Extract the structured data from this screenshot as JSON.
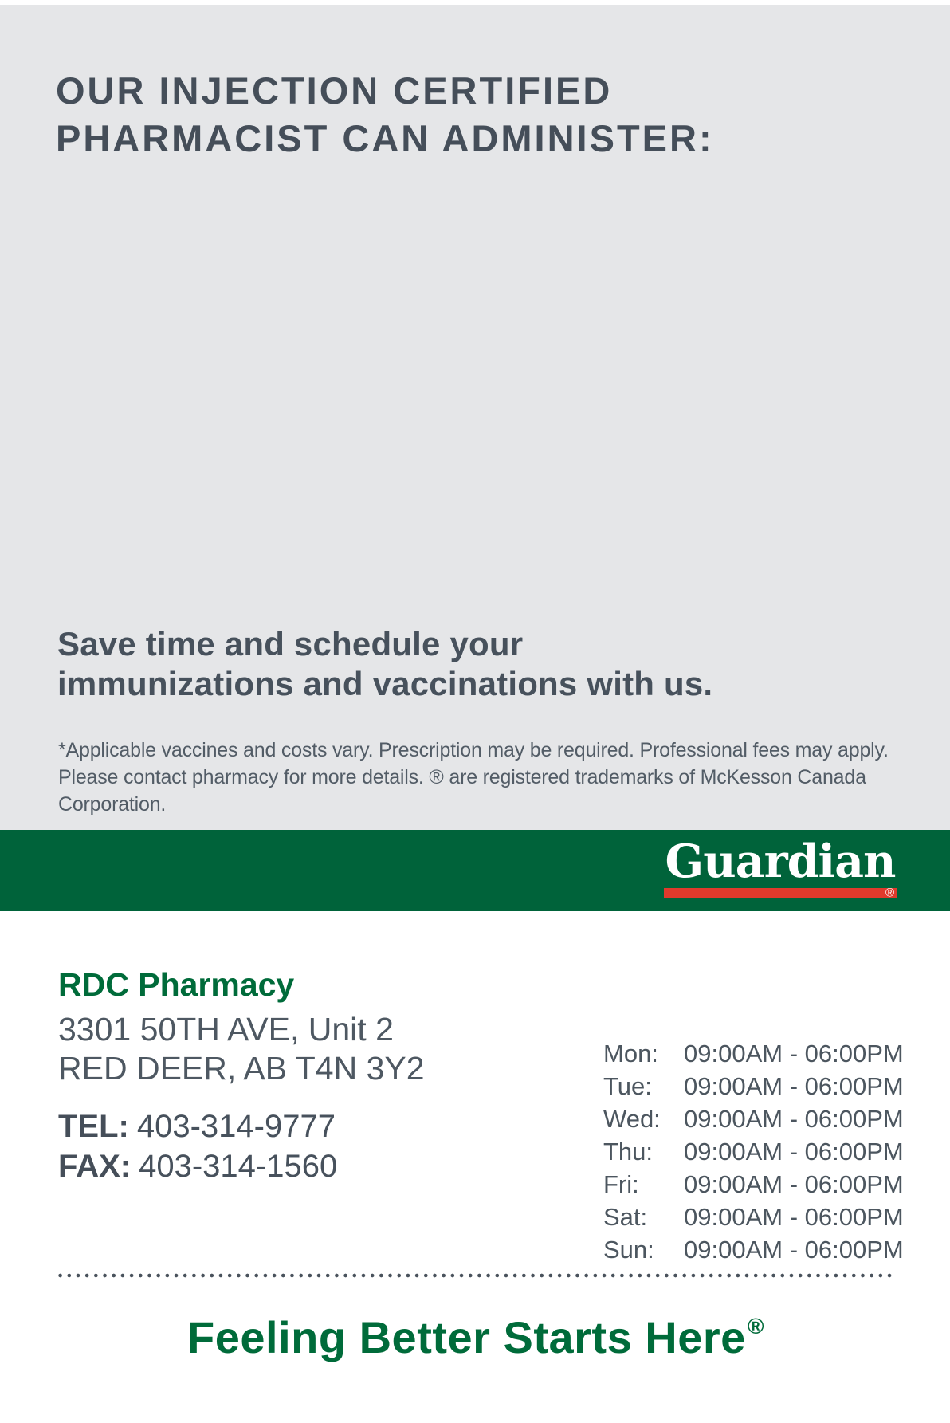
{
  "header": {
    "line1": "OUR INJECTION CERTIFIED",
    "line2": "PHARMACIST CAN ADMINISTER:"
  },
  "tagline": {
    "line1": "Save time and schedule your",
    "line2": "immunizations and vaccinations with us."
  },
  "disclaimer": {
    "line1": "*Applicable vaccines and costs vary. Prescription may be required. Professional fees may apply.",
    "line2": "Please contact pharmacy for more details. ® are registered trademarks of McKesson Canada Corporation."
  },
  "brand": {
    "logo_text": "Guardian",
    "registered_mark": "®"
  },
  "pharmacy": {
    "name": "RDC Pharmacy",
    "address_line1": "3301 50TH AVE, Unit 2",
    "address_line2": "RED DEER, AB T4N 3Y2",
    "tel_label": "TEL:",
    "tel": "403-314-9777",
    "fax_label": "FAX:",
    "fax": "403-314-1560"
  },
  "hours": {
    "rows": [
      {
        "day": "Mon:",
        "time": "09:00AM - 06:00PM"
      },
      {
        "day": "Tue:",
        "time": "09:00AM - 06:00PM"
      },
      {
        "day": "Wed:",
        "time": "09:00AM - 06:00PM"
      },
      {
        "day": "Thu:",
        "time": "09:00AM - 06:00PM"
      },
      {
        "day": "Fri:",
        "time": "09:00AM - 06:00PM"
      },
      {
        "day": "Sat:",
        "time": "09:00AM - 06:00PM"
      },
      {
        "day": "Sun:",
        "time": "09:00AM - 06:00PM"
      }
    ]
  },
  "slogan": {
    "text": "Feeling Better Starts Here",
    "registered_mark": "®"
  },
  "colors": {
    "background_gray": "#E5E6E8",
    "band_green": "#00633A",
    "brand_text_green": "#006B3A",
    "underline_red": "#E03A2C",
    "slate_text": "#47515C"
  }
}
